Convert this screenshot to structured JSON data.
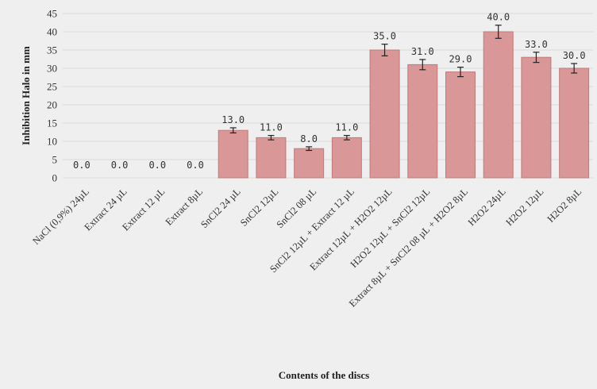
{
  "chart_data": {
    "type": "bar",
    "xlabel": "Contents of the discs",
    "ylabel": "Inhibition Halo in mm",
    "ylim": [
      0,
      45
    ],
    "yticks": [
      0,
      5,
      10,
      15,
      20,
      25,
      30,
      35,
      40,
      45
    ],
    "grid": true,
    "bar_color": "#d99797",
    "categories": [
      "NaCl (0,9%) 24µL",
      "Extract 24 µL",
      "Extract 12 µL",
      "Extract 8µL",
      "SnCl2 24 µL",
      "SnCl2 12µL",
      "SnCl2  08 µL",
      "SnCl2 12µL + Extract 12 µL",
      "Extract 12µL + H2O2 12µL",
      "H2O2 12µL +  SnCl2 12µL",
      "Extract 8µL + SnCl2  08 µL + H2O2 8µL",
      "H2O2  24µL",
      "H2O2 12µL",
      "H2O2  8µL"
    ],
    "values": [
      0,
      0,
      0,
      0,
      13,
      11,
      8,
      11,
      35,
      31,
      29,
      40,
      33,
      30
    ],
    "value_labels": [
      "0.0",
      "0.0",
      "0.0",
      "0.0",
      "13.0",
      "11.0",
      "8.0",
      "11.0",
      "35.0",
      "31.0",
      "29.0",
      "40.0",
      "33.0",
      "30.0"
    ],
    "errors": [
      0,
      0,
      0,
      0,
      0.7,
      0.6,
      0.5,
      0.6,
      1.6,
      1.4,
      1.3,
      1.8,
      1.4,
      1.3
    ]
  }
}
